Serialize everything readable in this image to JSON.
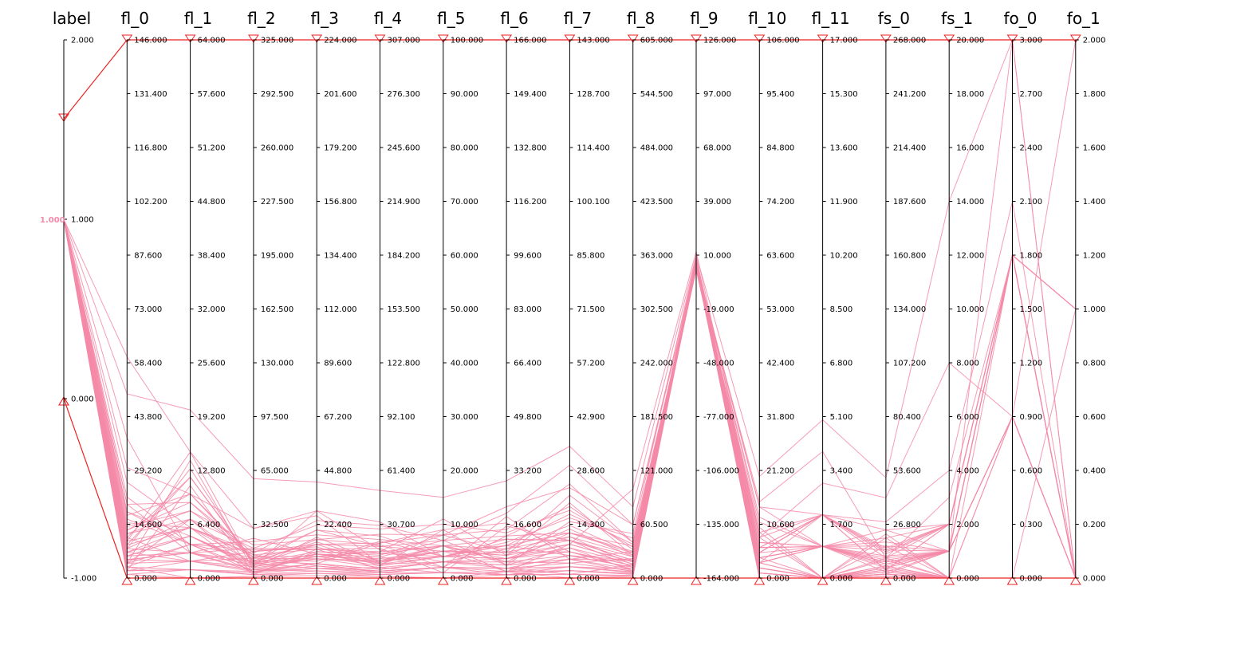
{
  "chart_data": {
    "type": "parallel-coordinates",
    "axes": [
      {
        "name": "label",
        "ticks": [
          "2.000",
          "1.000",
          "0.000",
          "-1.000"
        ],
        "range": [
          -1,
          2
        ]
      },
      {
        "name": "fl_0",
        "ticks": [
          "146.000",
          "131.400",
          "116.800",
          "102.200",
          "87.600",
          "73.000",
          "58.400",
          "43.800",
          "29.200",
          "14.600",
          "0.000"
        ],
        "range": [
          0,
          146
        ]
      },
      {
        "name": "fl_1",
        "ticks": [
          "64.000",
          "57.600",
          "51.200",
          "44.800",
          "38.400",
          "32.000",
          "25.600",
          "19.200",
          "12.800",
          "6.400",
          "0.000"
        ],
        "range": [
          0,
          64
        ]
      },
      {
        "name": "fl_2",
        "ticks": [
          "325.000",
          "292.500",
          "260.000",
          "227.500",
          "195.000",
          "162.500",
          "130.000",
          "97.500",
          "65.000",
          "32.500",
          "0.000"
        ],
        "range": [
          0,
          325
        ]
      },
      {
        "name": "fl_3",
        "ticks": [
          "224.000",
          "201.600",
          "179.200",
          "156.800",
          "134.400",
          "112.000",
          "89.600",
          "67.200",
          "44.800",
          "22.400",
          "0.000"
        ],
        "range": [
          0,
          224
        ]
      },
      {
        "name": "fl_4",
        "ticks": [
          "307.000",
          "276.300",
          "245.600",
          "214.900",
          "184.200",
          "153.500",
          "122.800",
          "92.100",
          "61.400",
          "30.700",
          "0.000"
        ],
        "range": [
          0,
          307
        ]
      },
      {
        "name": "fl_5",
        "ticks": [
          "100.000",
          "90.000",
          "80.000",
          "70.000",
          "60.000",
          "50.000",
          "40.000",
          "30.000",
          "20.000",
          "10.000",
          "0.000"
        ],
        "range": [
          0,
          100
        ]
      },
      {
        "name": "fl_6",
        "ticks": [
          "166.000",
          "149.400",
          "132.800",
          "116.200",
          "99.600",
          "83.000",
          "66.400",
          "49.800",
          "33.200",
          "16.600",
          "0.000"
        ],
        "range": [
          0,
          166
        ]
      },
      {
        "name": "fl_7",
        "ticks": [
          "143.000",
          "128.700",
          "114.400",
          "100.100",
          "85.800",
          "71.500",
          "57.200",
          "42.900",
          "28.600",
          "14.300",
          "0.000"
        ],
        "range": [
          0,
          143
        ]
      },
      {
        "name": "fl_8",
        "ticks": [
          "605.000",
          "544.500",
          "484.000",
          "423.500",
          "363.000",
          "302.500",
          "242.000",
          "181.500",
          "121.000",
          "60.500",
          "0.000"
        ],
        "range": [
          0,
          605
        ]
      },
      {
        "name": "fl_9",
        "ticks": [
          "126.000",
          "97.000",
          "68.000",
          "39.000",
          "10.000",
          "-19.000",
          "-48.000",
          "-77.000",
          "-106.000",
          "-135.000",
          "-164.000"
        ],
        "range": [
          -164,
          126
        ]
      },
      {
        "name": "fl_10",
        "ticks": [
          "106.000",
          "95.400",
          "84.800",
          "74.200",
          "63.600",
          "53.000",
          "42.400",
          "31.800",
          "21.200",
          "10.600",
          "0.000"
        ],
        "range": [
          0,
          106
        ]
      },
      {
        "name": "fl_11",
        "ticks": [
          "17.000",
          "15.300",
          "13.600",
          "11.900",
          "10.200",
          "8.500",
          "6.800",
          "5.100",
          "3.400",
          "1.700",
          "0.000"
        ],
        "range": [
          0,
          17
        ]
      },
      {
        "name": "fs_0",
        "ticks": [
          "268.000",
          "241.200",
          "214.400",
          "187.600",
          "160.800",
          "134.000",
          "107.200",
          "80.400",
          "53.600",
          "26.800",
          "0.000"
        ],
        "range": [
          0,
          268
        ]
      },
      {
        "name": "fs_1",
        "ticks": [
          "20.000",
          "18.000",
          "16.000",
          "14.000",
          "12.000",
          "10.000",
          "8.000",
          "6.000",
          "4.000",
          "2.000",
          "0.000"
        ],
        "range": [
          0,
          20
        ]
      },
      {
        "name": "fo_0",
        "ticks": [
          "3.000",
          "2.700",
          "2.400",
          "2.100",
          "1.800",
          "1.500",
          "1.200",
          "0.900",
          "0.600",
          "0.300",
          "0.000"
        ],
        "range": [
          0,
          3
        ]
      },
      {
        "name": "fo_1",
        "ticks": [
          "2.000",
          "1.800",
          "1.600",
          "1.400",
          "1.200",
          "1.000",
          "0.800",
          "0.600",
          "0.400",
          "0.200",
          "0.000"
        ],
        "range": [
          0,
          2
        ]
      }
    ],
    "marker_lines": [
      {
        "values": [
          1.56,
          146,
          64,
          325,
          224,
          307,
          100,
          166,
          143,
          605,
          126,
          106,
          17,
          268,
          20,
          3,
          2
        ]
      },
      {
        "values": [
          0,
          0,
          0,
          0,
          0,
          0,
          0,
          0,
          0,
          0,
          -164,
          0,
          0,
          0,
          0,
          0,
          0
        ]
      }
    ],
    "series": [
      {
        "values": [
          1,
          2,
          1,
          4,
          6,
          3,
          2,
          1,
          3,
          10,
          8,
          1,
          0,
          2,
          1,
          3,
          0
        ]
      },
      {
        "values": [
          1,
          5,
          3,
          8,
          10,
          12,
          2,
          3,
          1,
          15,
          7,
          3,
          1,
          5,
          1,
          1.8,
          1
        ]
      },
      {
        "values": [
          1,
          9,
          12,
          10,
          20,
          18,
          5,
          10,
          12,
          30,
          6,
          8,
          0,
          10,
          0,
          0,
          0
        ]
      },
      {
        "values": [
          1,
          14,
          8,
          20,
          16,
          25,
          8,
          15,
          25,
          40,
          3,
          5,
          2,
          4,
          2,
          1.8,
          0
        ]
      },
      {
        "values": [
          1,
          3,
          4,
          6,
          8,
          10,
          6,
          2,
          5,
          20,
          5,
          12,
          1,
          8,
          1,
          1.8,
          0
        ]
      },
      {
        "values": [
          1,
          7,
          6,
          2,
          12,
          5,
          3,
          6,
          8,
          8,
          4,
          2,
          0,
          20,
          0,
          0,
          1
        ]
      },
      {
        "values": [
          1,
          11,
          2,
          12,
          14,
          20,
          9,
          4,
          15,
          50,
          9,
          6,
          2,
          15,
          2,
          1.8,
          0
        ]
      },
      {
        "values": [
          1,
          17,
          10,
          30,
          26,
          8,
          4,
          12,
          10,
          12,
          7,
          4,
          1,
          3,
          1,
          0.9,
          2
        ]
      },
      {
        "values": [
          1,
          4,
          14,
          5,
          9,
          15,
          11,
          7,
          20,
          25,
          2,
          9,
          0,
          6,
          0,
          1.8,
          0
        ]
      },
      {
        "values": [
          1,
          20,
          9,
          15,
          24,
          30,
          7,
          20,
          30,
          60,
          6,
          14,
          1,
          24,
          1,
          1.8,
          0
        ]
      },
      {
        "values": [
          1,
          6,
          5,
          9,
          4,
          6,
          1,
          1,
          2,
          5,
          8,
          0,
          0,
          1,
          0,
          0.9,
          0
        ]
      },
      {
        "values": [
          1,
          12,
          7,
          18,
          22,
          28,
          10,
          14,
          18,
          35,
          5,
          3,
          2,
          12,
          2,
          1.8,
          1
        ]
      },
      {
        "values": [
          1,
          8,
          3,
          10,
          15,
          10,
          5,
          2,
          9,
          18,
          4,
          1,
          0,
          9,
          0,
          0,
          0
        ]
      },
      {
        "values": [
          1,
          15,
          6,
          14,
          5,
          4,
          2,
          19,
          5,
          7,
          7,
          7,
          1,
          18,
          1,
          1.8,
          0
        ]
      },
      {
        "values": [
          1,
          2,
          11,
          3,
          11,
          13,
          8,
          8,
          22,
          40,
          3,
          2,
          0,
          0,
          0,
          0.9,
          0
        ]
      },
      {
        "values": [
          1,
          18,
          4,
          22,
          18,
          22,
          6,
          5,
          4,
          22,
          9,
          5,
          2,
          14,
          2,
          1.8,
          0
        ]
      },
      {
        "values": [
          1,
          10,
          15,
          7,
          28,
          16,
          3,
          9,
          14,
          28,
          6,
          11,
          1,
          7,
          1,
          1.8,
          1
        ]
      },
      {
        "values": [
          1,
          5,
          2,
          16,
          13,
          7,
          9,
          17,
          7,
          10,
          8,
          3,
          0,
          22,
          0,
          0,
          0
        ]
      },
      {
        "values": [
          1,
          13,
          9,
          11,
          7,
          21,
          4,
          11,
          16,
          45,
          2,
          6,
          2,
          4,
          2,
          1.8,
          0
        ]
      },
      {
        "values": [
          1,
          7,
          5,
          6,
          17,
          9,
          6,
          6,
          11,
          15,
          7,
          4,
          1,
          11,
          1,
          0.9,
          0
        ]
      },
      {
        "values": [
          1,
          1,
          1,
          2,
          3,
          2,
          1,
          1,
          1,
          3,
          5,
          0,
          0,
          1,
          0,
          0,
          0
        ]
      },
      {
        "values": [
          1,
          3,
          0,
          1,
          2,
          1,
          0,
          2,
          0,
          2,
          7,
          1,
          0,
          2,
          0,
          0,
          0
        ]
      },
      {
        "values": [
          1,
          9,
          6,
          13,
          9,
          11,
          5,
          7,
          13,
          24,
          6,
          7,
          1,
          9,
          1,
          1.8,
          0
        ]
      },
      {
        "values": [
          1,
          6,
          3,
          4,
          6,
          5,
          3,
          3,
          6,
          12,
          4,
          2,
          0,
          5,
          0,
          0,
          0
        ]
      },
      {
        "values": [
          1,
          11,
          12,
          9,
          16,
          19,
          2,
          13,
          19,
          32,
          5,
          8,
          2,
          13,
          2,
          1.8,
          0
        ]
      },
      {
        "values": [
          1,
          4,
          7,
          3,
          10,
          12,
          7,
          4,
          8,
          16,
          8,
          3,
          1,
          6,
          1,
          0.9,
          0
        ]
      },
      {
        "values": [
          1,
          16,
          4,
          17,
          12,
          17,
          1,
          16,
          10,
          20,
          3,
          10,
          0,
          16,
          0,
          0,
          0
        ]
      },
      {
        "values": [
          1,
          8,
          13,
          8,
          14,
          8,
          6,
          5,
          12,
          28,
          7,
          6,
          1,
          8,
          1,
          1.8,
          0
        ]
      },
      {
        "values": [
          1,
          2,
          2,
          5,
          3,
          3,
          2,
          2,
          3,
          6,
          6,
          1,
          0,
          3,
          0,
          0,
          0
        ]
      },
      {
        "values": [
          1,
          13,
          10,
          12,
          20,
          24,
          4,
          10,
          17,
          38,
          4,
          9,
          2,
          10,
          2,
          1.8,
          1
        ]
      },
      {
        "values": [
          1,
          4,
          4,
          4,
          5,
          4,
          2,
          3,
          4,
          8,
          6,
          2,
          0,
          4,
          0,
          0,
          0
        ]
      },
      {
        "values": [
          1,
          7,
          2,
          7,
          8,
          6,
          3,
          5,
          6,
          12,
          5,
          4,
          0,
          6,
          0,
          0,
          0
        ]
      },
      {
        "values": [
          1,
          10,
          6,
          9,
          11,
          14,
          4,
          8,
          10,
          20,
          5,
          5,
          1,
          8,
          1,
          0.9,
          0
        ]
      },
      {
        "values": [
          1,
          3,
          1,
          2,
          2,
          2,
          1,
          2,
          2,
          4,
          6,
          1,
          0,
          2,
          0,
          0,
          0
        ]
      },
      {
        "values": [
          1,
          6,
          5,
          7,
          9,
          7,
          4,
          6,
          7,
          14,
          5,
          3,
          0,
          5,
          1,
          1.8,
          0
        ]
      },
      {
        "values": [
          1,
          5,
          3,
          5,
          6,
          5,
          3,
          4,
          5,
          10,
          6,
          2,
          0,
          4,
          0,
          0,
          0
        ]
      },
      {
        "values": [
          1,
          1,
          0,
          1,
          1,
          1,
          0,
          1,
          1,
          2,
          5,
          0,
          0,
          1,
          0,
          0,
          0
        ]
      },
      {
        "values": [
          1,
          8,
          7,
          8,
          10,
          9,
          5,
          7,
          9,
          18,
          5,
          4,
          1,
          7,
          1,
          0.9,
          0
        ]
      },
      {
        "values": [
          1,
          12,
          8,
          14,
          12,
          15,
          6,
          9,
          11,
          26,
          4,
          6,
          1,
          10,
          1,
          1.8,
          0
        ]
      },
      {
        "values": [
          1,
          2,
          1,
          3,
          4,
          3,
          1,
          1,
          2,
          5,
          6,
          1,
          0,
          2,
          0,
          0,
          0
        ]
      },
      {
        "values": [
          1,
          4,
          2,
          4,
          4,
          4,
          2,
          3,
          3,
          7,
          5,
          2,
          0,
          3,
          0,
          0,
          0
        ]
      },
      {
        "values": [
          1,
          50,
          20,
          60,
          40,
          50,
          15,
          30,
          35,
          80,
          10,
          20,
          5,
          50,
          14,
          3,
          0
        ]
      },
      {
        "values": [
          1,
          38,
          3,
          18,
          12,
          14,
          6,
          12,
          10,
          24,
          4,
          14,
          2,
          28,
          4,
          2.1,
          0
        ]
      },
      {
        "values": [
          1,
          22,
          4,
          12,
          8,
          9,
          5,
          8,
          7,
          14,
          3,
          6,
          1,
          20,
          2,
          1.8,
          1
        ]
      },
      {
        "values": [
          1,
          30,
          10,
          10,
          6,
          20,
          8,
          22,
          24,
          60,
          3,
          4,
          1,
          16,
          1,
          1.8,
          0
        ]
      },
      {
        "values": [
          1,
          60,
          15,
          30,
          28,
          32,
          4,
          6,
          9,
          100,
          12,
          8,
          3,
          40,
          8,
          0.9,
          0
        ]
      },
      {
        "values": [
          1,
          18,
          5,
          8,
          10,
          8,
          3,
          4,
          5,
          30,
          4,
          15,
          4,
          10,
          3,
          1.8,
          0
        ]
      },
      {
        "values": [
          1,
          26,
          6,
          16,
          14,
          18,
          7,
          13,
          12,
          36,
          5,
          5,
          2,
          24,
          2,
          1.8,
          0
        ]
      },
      {
        "values": [
          1,
          20,
          3,
          24,
          10,
          10,
          4,
          10,
          6,
          20,
          6,
          3,
          1,
          14,
          1,
          0.9,
          0
        ]
      }
    ]
  }
}
